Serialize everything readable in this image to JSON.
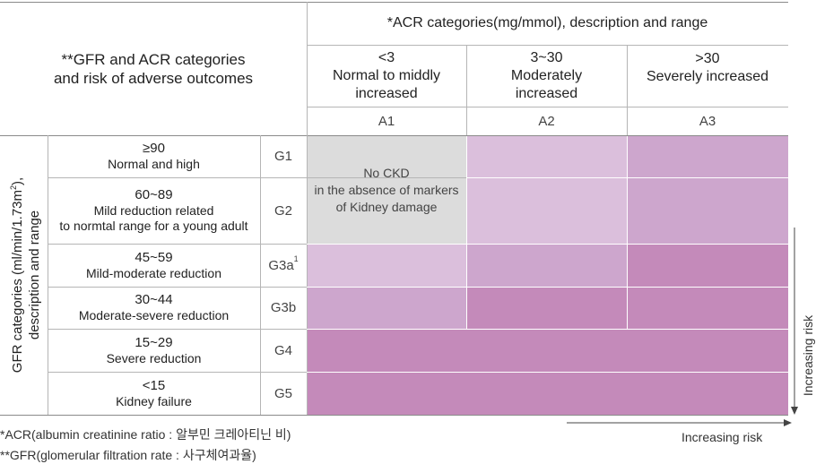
{
  "header": {
    "corner_title_line1": "**GFR and ACR categories",
    "corner_title_line2": "and risk of adverse outcomes",
    "acr_title": "*ACR categories(mg/mmol), description and range"
  },
  "acr_columns": [
    {
      "range": "<3",
      "desc_line1": "Normal to middly",
      "desc_line2": "increased",
      "code": "A1"
    },
    {
      "range": "3~30",
      "desc_line1": "Moderately",
      "desc_line2": "increased",
      "code": "A2"
    },
    {
      "range": ">30",
      "desc_line1": "Severely increased",
      "desc_line2": "",
      "code": "A3"
    }
  ],
  "gfr_axis": {
    "line1": "GFR categories (ml/min/1.73m",
    "sup": "2",
    "line1_end": "),",
    "line2": "description and range"
  },
  "gfr_rows": [
    {
      "value": "≥90",
      "desc_line1": "Normal and high",
      "desc_line2": "",
      "code": "G1",
      "sup": ""
    },
    {
      "value": "60~89",
      "desc_line1": "Mild reduction related",
      "desc_line2": "to normtal range for a young adult",
      "code": "G2",
      "sup": ""
    },
    {
      "value": "45~59",
      "desc_line1": "Mild-moderate reduction",
      "desc_line2": "",
      "code": "G3a",
      "sup": "1"
    },
    {
      "value": "30~44",
      "desc_line1": "Moderate-severe reduction",
      "desc_line2": "",
      "code": "G3b",
      "sup": ""
    },
    {
      "value": "15~29",
      "desc_line1": "Severe reduction",
      "desc_line2": "",
      "code": "G4",
      "sup": ""
    },
    {
      "value": "<15",
      "desc_line1": "Kidney failure",
      "desc_line2": "",
      "code": "G5",
      "sup": ""
    }
  ],
  "no_ckd": {
    "line1": "No CKD",
    "line2": "in the absence of markers",
    "line3": "of Kidney damage"
  },
  "risk_labels": {
    "horizontal": "Increasing risk",
    "vertical": "Increasing risk"
  },
  "risk_colors": {
    "none": "#dcdcdc",
    "low": "#dbbfdc",
    "moderate": "#cda6cd",
    "high": "#c48aba"
  },
  "footnotes": {
    "acr": "*ACR(albumin creatinine ratio : 알부민 크레아티닌 비)",
    "gfr": "**GFR(glomerular filtration rate : 사구체여과율)"
  }
}
